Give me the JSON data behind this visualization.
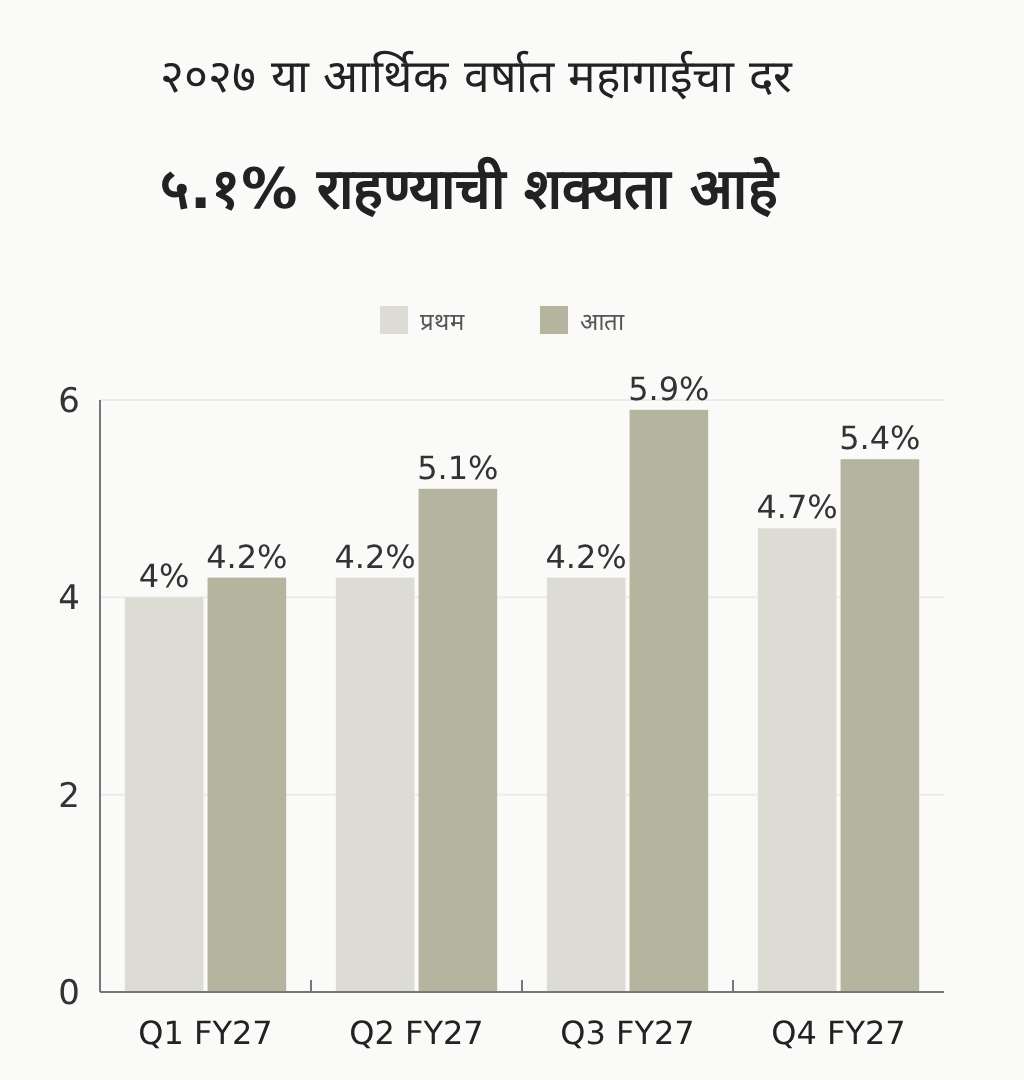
{
  "chart_data": {
    "type": "bar",
    "title": "२०२७ या आर्थिक वर्षात महागाईचा दर",
    "subtitle": "५.१% राहण्याची शक्यता आहे",
    "categories": [
      "Q1 FY27",
      "Q2 FY27",
      "Q3 FY27",
      "Q4 FY27"
    ],
    "series": [
      {
        "name": "प्रथम",
        "color": "#dcdcd4",
        "values": [
          4,
          4.2,
          4.2,
          4.7
        ],
        "value_labels": [
          "4%",
          "4.2%",
          "4.2%",
          "4.7%"
        ]
      },
      {
        "name": "आता",
        "color": "#b5b59f",
        "values": [
          4.2,
          5.1,
          5.9,
          5.4
        ],
        "value_labels": [
          "4.2%",
          "5.1%",
          "5.9%",
          "5.4%"
        ]
      }
    ],
    "ylim": [
      0,
      6
    ],
    "yticks": [
      0,
      2,
      4,
      6
    ],
    "grid": "y",
    "legend": "top"
  }
}
